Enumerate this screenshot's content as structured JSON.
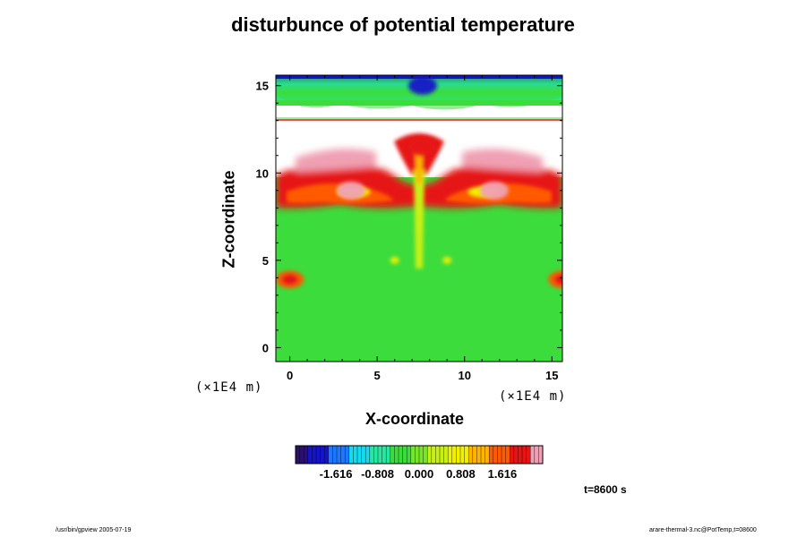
{
  "chart_data": {
    "type": "heatmap",
    "title": "disturbunce of potential temperature",
    "xlabel": "X-coordinate",
    "ylabel": "Z-coordinate",
    "x_unit": "(×1E4 m)",
    "y_unit": "(×1E4 m)",
    "xlim": [
      -0.8,
      15.6
    ],
    "ylim": [
      -0.8,
      15.6
    ],
    "x_ticks": [
      0,
      5,
      10,
      15
    ],
    "y_ticks": [
      0,
      5,
      10,
      15
    ],
    "colorbar": {
      "range": [
        -2.4,
        2.4
      ],
      "tick_values": [
        -1.616,
        -0.808,
        0.0,
        0.808,
        1.616
      ],
      "tick_labels": [
        "-1.616",
        "-0.808",
        "0.000",
        "0.808",
        "1.616"
      ],
      "colors": [
        "#2a1070",
        "#1414c8",
        "#1e78ff",
        "#14dcf0",
        "#28e6a0",
        "#3cdc3c",
        "#78e628",
        "#c8f014",
        "#f0f000",
        "#ffb400",
        "#ff5a00",
        "#e61414",
        "#f0a0b4"
      ]
    },
    "features": [
      {
        "x": 0,
        "z": 3.9,
        "value": 1.7
      },
      {
        "x": 15.6,
        "z": 3.9,
        "value": 1.7
      },
      {
        "x": 6.0,
        "z": 5.0,
        "value": 0.9
      },
      {
        "x": 9.0,
        "z": 5.0,
        "value": 0.9
      },
      {
        "x": 3.5,
        "z": 9.0,
        "value": 2.2
      },
      {
        "x": 11.7,
        "z": 9.0,
        "value": 2.2
      },
      {
        "x": 7.6,
        "z": 11.5,
        "value": 2.0
      },
      {
        "x": 7.6,
        "z": 15.0,
        "value": -2.0
      }
    ],
    "annotation": "t=8600 s"
  },
  "footer": {
    "left": "/usr/bin/gpview 2005-07-19",
    "right": "arare-thermal-3.nc@PotTemp,t=08600"
  }
}
